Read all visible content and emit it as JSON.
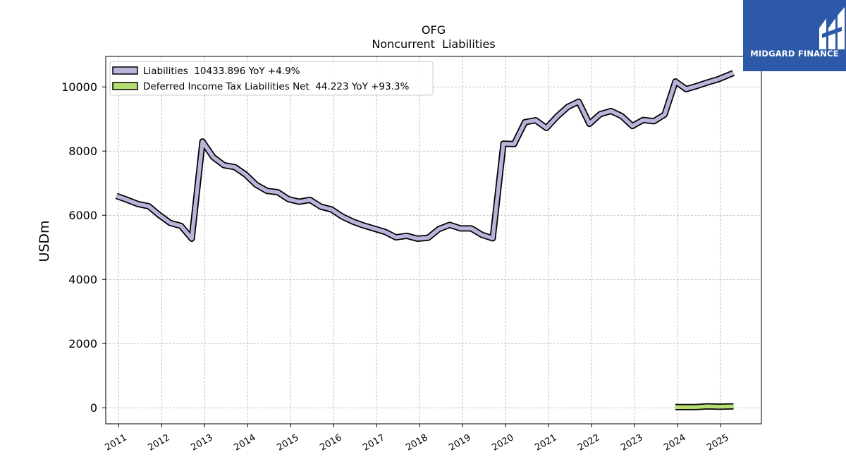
{
  "chart_data": {
    "type": "line",
    "title": "OFG",
    "subtitle": "Noncurrent  Liabilities",
    "xlabel": "",
    "ylabel": "USDm",
    "ylim": [
      -500,
      10950
    ],
    "xlim": [
      2010.7,
      2025.95
    ],
    "yticks": [
      0,
      2000,
      4000,
      6000,
      8000,
      10000
    ],
    "xtick_labels": [
      "2011",
      "2012",
      "2013",
      "2014",
      "2015",
      "2016",
      "2017",
      "2018",
      "2019",
      "2020",
      "2021",
      "2022",
      "2023",
      "2024",
      "2025"
    ],
    "grid": true,
    "legend_position": "top-left",
    "series": [
      {
        "name": "Liabilities",
        "legend_label": "Liabilities  10433.896 YoY +4.9%",
        "color": "#b8b4da",
        "x": [
          2010.95,
          2011.2,
          2011.45,
          2011.7,
          2011.95,
          2012.2,
          2012.45,
          2012.7,
          2012.95,
          2013.2,
          2013.45,
          2013.7,
          2013.95,
          2014.2,
          2014.45,
          2014.7,
          2014.95,
          2015.2,
          2015.45,
          2015.7,
          2015.95,
          2016.2,
          2016.45,
          2016.7,
          2016.95,
          2017.2,
          2017.45,
          2017.7,
          2017.95,
          2018.2,
          2018.45,
          2018.7,
          2018.95,
          2019.2,
          2019.45,
          2019.7,
          2019.95,
          2020.2,
          2020.45,
          2020.7,
          2020.95,
          2021.2,
          2021.45,
          2021.7,
          2021.95,
          2022.2,
          2022.45,
          2022.7,
          2022.95,
          2023.2,
          2023.45,
          2023.7,
          2023.95,
          2024.2,
          2024.45,
          2024.7,
          2024.95,
          2025.3
        ],
        "values": [
          6600,
          6480,
          6350,
          6280,
          6000,
          5760,
          5670,
          5270,
          8300,
          7810,
          7560,
          7500,
          7270,
          6950,
          6760,
          6720,
          6500,
          6420,
          6480,
          6270,
          6180,
          5960,
          5800,
          5680,
          5580,
          5480,
          5310,
          5360,
          5270,
          5300,
          5570,
          5700,
          5590,
          5590,
          5390,
          5280,
          8230,
          8220,
          8900,
          8960,
          8720,
          9080,
          9380,
          9540,
          8850,
          9150,
          9250,
          9090,
          8780,
          8970,
          8930,
          9140,
          10170,
          9930,
          10030,
          10140,
          10240,
          10434
        ]
      },
      {
        "name": "Deferred Income Tax Liabilities Net",
        "legend_label": "Deferred Income Tax Liabilities Net  44.223 YoY +93.3%",
        "color": "#b5dc6e",
        "x": [
          2023.95,
          2024.2,
          2024.45,
          2024.7,
          2024.95,
          2025.3
        ],
        "values": [
          23,
          23,
          25,
          44,
          35,
          44
        ]
      }
    ]
  },
  "brand": {
    "name": "MIDGARD FINANCE",
    "bg_color": "#2d5aa8"
  }
}
